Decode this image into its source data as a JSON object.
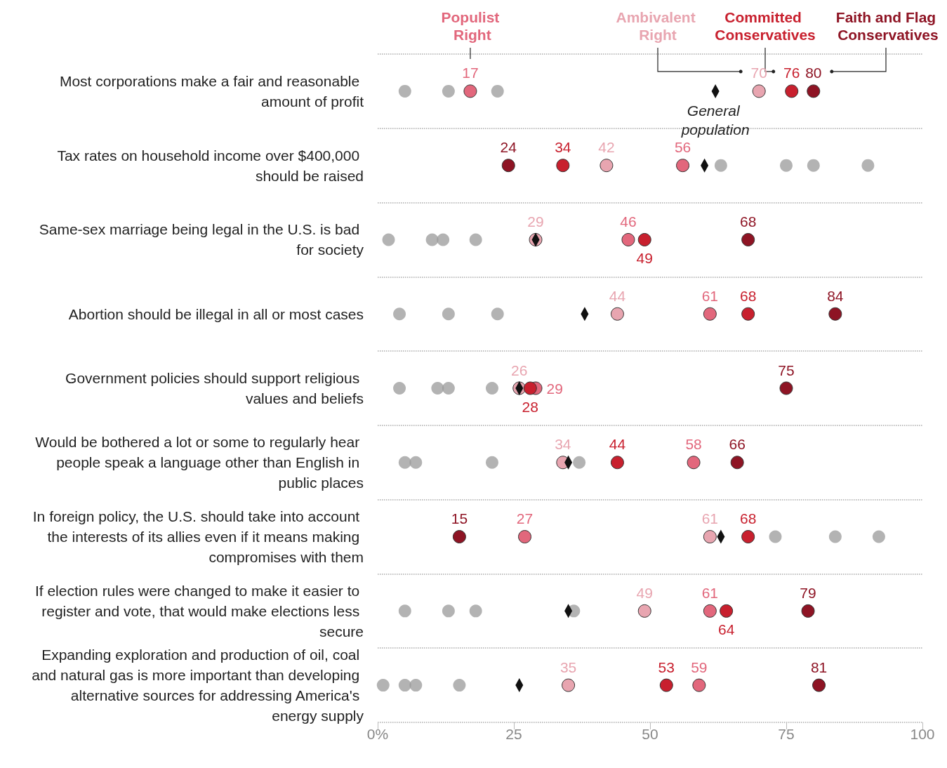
{
  "chart_data": {
    "type": "scatter",
    "orientation": "horizontal",
    "categories": [
      "Most corporations make a fair and reasonable amount of profit",
      "Tax rates on household income over $400,000 should be raised",
      "Same-sex marriage being legal in the U.S. is bad for society",
      "Abortion should be illegal in all or most cases",
      "Government policies should support religious values and beliefs",
      "Would be bothered a lot or some to regularly hear people speak a language other than English in public places",
      "In foreign policy, the U.S. should take into account the interests of its allies even if it means making compromises with them",
      "If election rules were changed to make it easier to register and vote, that would make elections less secure",
      "Expanding exploration and production of oil, coal and natural gas is more important than developing alternative sources for addressing America's energy supply"
    ],
    "xlim": [
      0,
      100
    ],
    "xticks": [
      {
        "value": 0,
        "label": "0%"
      },
      25,
      50,
      75,
      100
    ],
    "grid": "y",
    "marker": "circle",
    "series": [
      {
        "color": "#9a9a9a",
        "values": [
          5,
          63,
          2,
          4,
          4,
          5,
          73,
          5,
          1
        ]
      },
      {
        "color": "#9a9a9a",
        "values": [
          13,
          75,
          10,
          13,
          11,
          7,
          84,
          13,
          5
        ]
      },
      {
        "color": "#9a9a9a",
        "values": [
          22,
          80,
          12,
          22,
          13,
          21,
          92,
          18,
          7
        ]
      },
      {
        "color": "#9a9a9a",
        "values": [
          null,
          90,
          18,
          null,
          21,
          37,
          null,
          36,
          15
        ]
      },
      {
        "name": "General population",
        "type": "scatter",
        "marker": "diamond",
        "color": "#111111",
        "values": [
          62,
          60,
          29,
          38,
          26,
          35,
          63,
          35,
          26
        ]
      },
      {
        "name": "Populist Right",
        "color": "#e2677c",
        "values": [
          17,
          56,
          46,
          61,
          29,
          58,
          27,
          61,
          59
        ],
        "value_labels": [
          "17",
          "56",
          "46",
          "61",
          "29",
          "58",
          "27",
          "61",
          "59"
        ]
      },
      {
        "name": "Ambivalent Right",
        "color": "#e8a5b0",
        "values": [
          70,
          42,
          29,
          44,
          26,
          34,
          61,
          49,
          35
        ],
        "value_labels": [
          "70",
          "42",
          "29",
          "44",
          "26",
          "34",
          "61",
          "49",
          "35"
        ]
      },
      {
        "name": "Committed Conservatives",
        "color": "#c8202e",
        "values": [
          76,
          34,
          49,
          68,
          28,
          44,
          68,
          64,
          53
        ],
        "value_labels": [
          "76",
          "34",
          "49",
          "68",
          "28",
          "44",
          "68",
          "64",
          "53"
        ]
      },
      {
        "name": "Faith and Flag Conservatives",
        "color": "#8e1424",
        "values": [
          80,
          24,
          68,
          84,
          75,
          66,
          15,
          79,
          81
        ],
        "value_labels": [
          "80",
          "24",
          "68",
          "84",
          "75",
          "66",
          "15",
          "79",
          "81"
        ]
      }
    ]
  }
}
